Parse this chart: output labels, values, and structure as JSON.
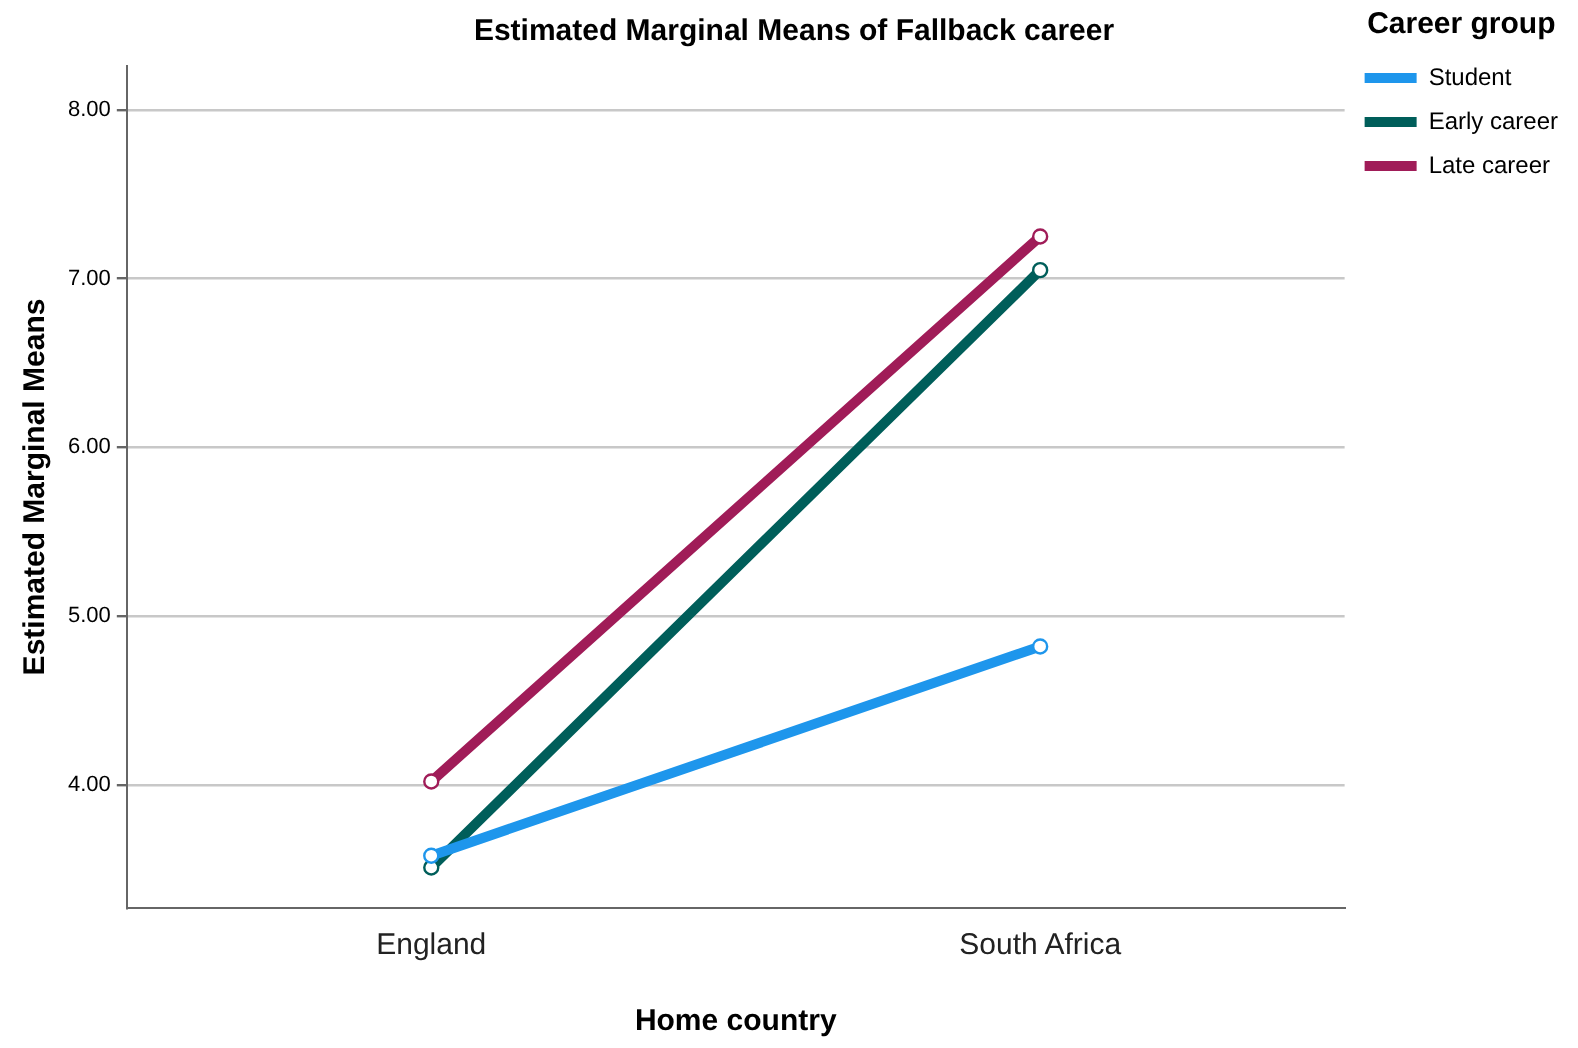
{
  "chart_data": {
    "type": "line",
    "title": "Estimated Marginal Means of Fallback career",
    "xlabel": "Home country",
    "ylabel": "Estimated Marginal Means",
    "legend_title": "Career group",
    "categories": [
      "England",
      "South Africa"
    ],
    "series": [
      {
        "name": "Student",
        "color": "#1e96ec",
        "values": [
          3.58,
          4.82
        ]
      },
      {
        "name": "Early career",
        "color": "#005e5a",
        "values": [
          3.51,
          7.05
        ]
      },
      {
        "name": "Late career",
        "color": "#a01c58",
        "values": [
          4.02,
          7.25
        ]
      }
    ],
    "ylim": [
      3.27,
      8.26
    ],
    "yticks": [
      {
        "value": 4,
        "label": "4.00"
      },
      {
        "value": 5,
        "label": "5.00"
      },
      {
        "value": 6,
        "label": "6.00"
      },
      {
        "value": 7,
        "label": "7.00"
      },
      {
        "value": 8,
        "label": "8.00"
      }
    ],
    "grid": "y",
    "legend": "right",
    "marker": "circle",
    "line_style": "solid"
  }
}
